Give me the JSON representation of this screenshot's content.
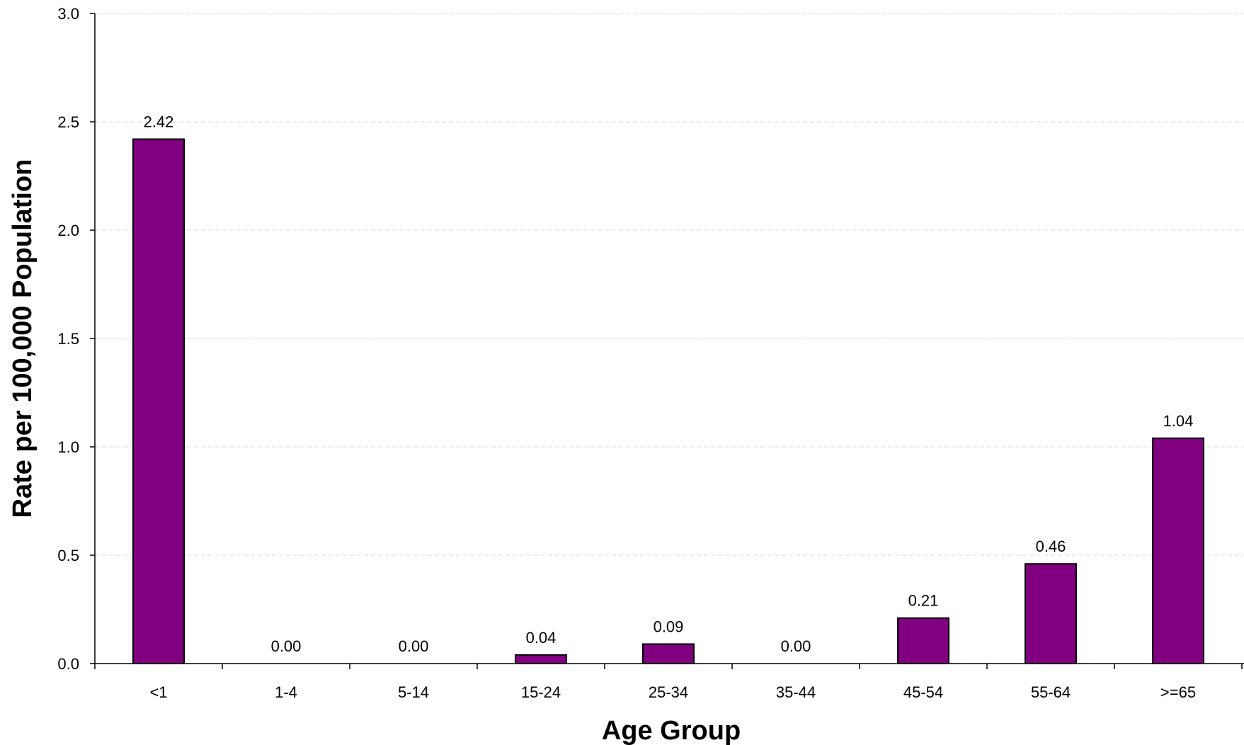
{
  "chart_data": {
    "type": "bar",
    "title": "",
    "xlabel": "Age Group",
    "ylabel": "Rate per 100,000 Population",
    "categories": [
      "<1",
      "1-4",
      "5-14",
      "15-24",
      "25-34",
      "35-44",
      "45-54",
      "55-64",
      ">=65"
    ],
    "values": [
      2.42,
      0.0,
      0.0,
      0.04,
      0.09,
      0.0,
      0.21,
      0.46,
      1.04
    ],
    "value_labels": [
      "2.42",
      "0.00",
      "0.00",
      "0.04",
      "0.09",
      "0.00",
      "0.21",
      "0.46",
      "1.04"
    ],
    "ylim": [
      0,
      3.0
    ],
    "yticks": [
      0.0,
      0.5,
      1.0,
      1.5,
      2.0,
      2.5,
      3.0
    ],
    "ytick_labels": [
      "0.0",
      "0.5",
      "1.0",
      "1.5",
      "2.0",
      "2.5",
      "3.0"
    ],
    "grid": true,
    "legend": "none",
    "bar_color": "#800080",
    "bar_edge_color": "#000000",
    "grid_color": "#d9d9d9"
  }
}
